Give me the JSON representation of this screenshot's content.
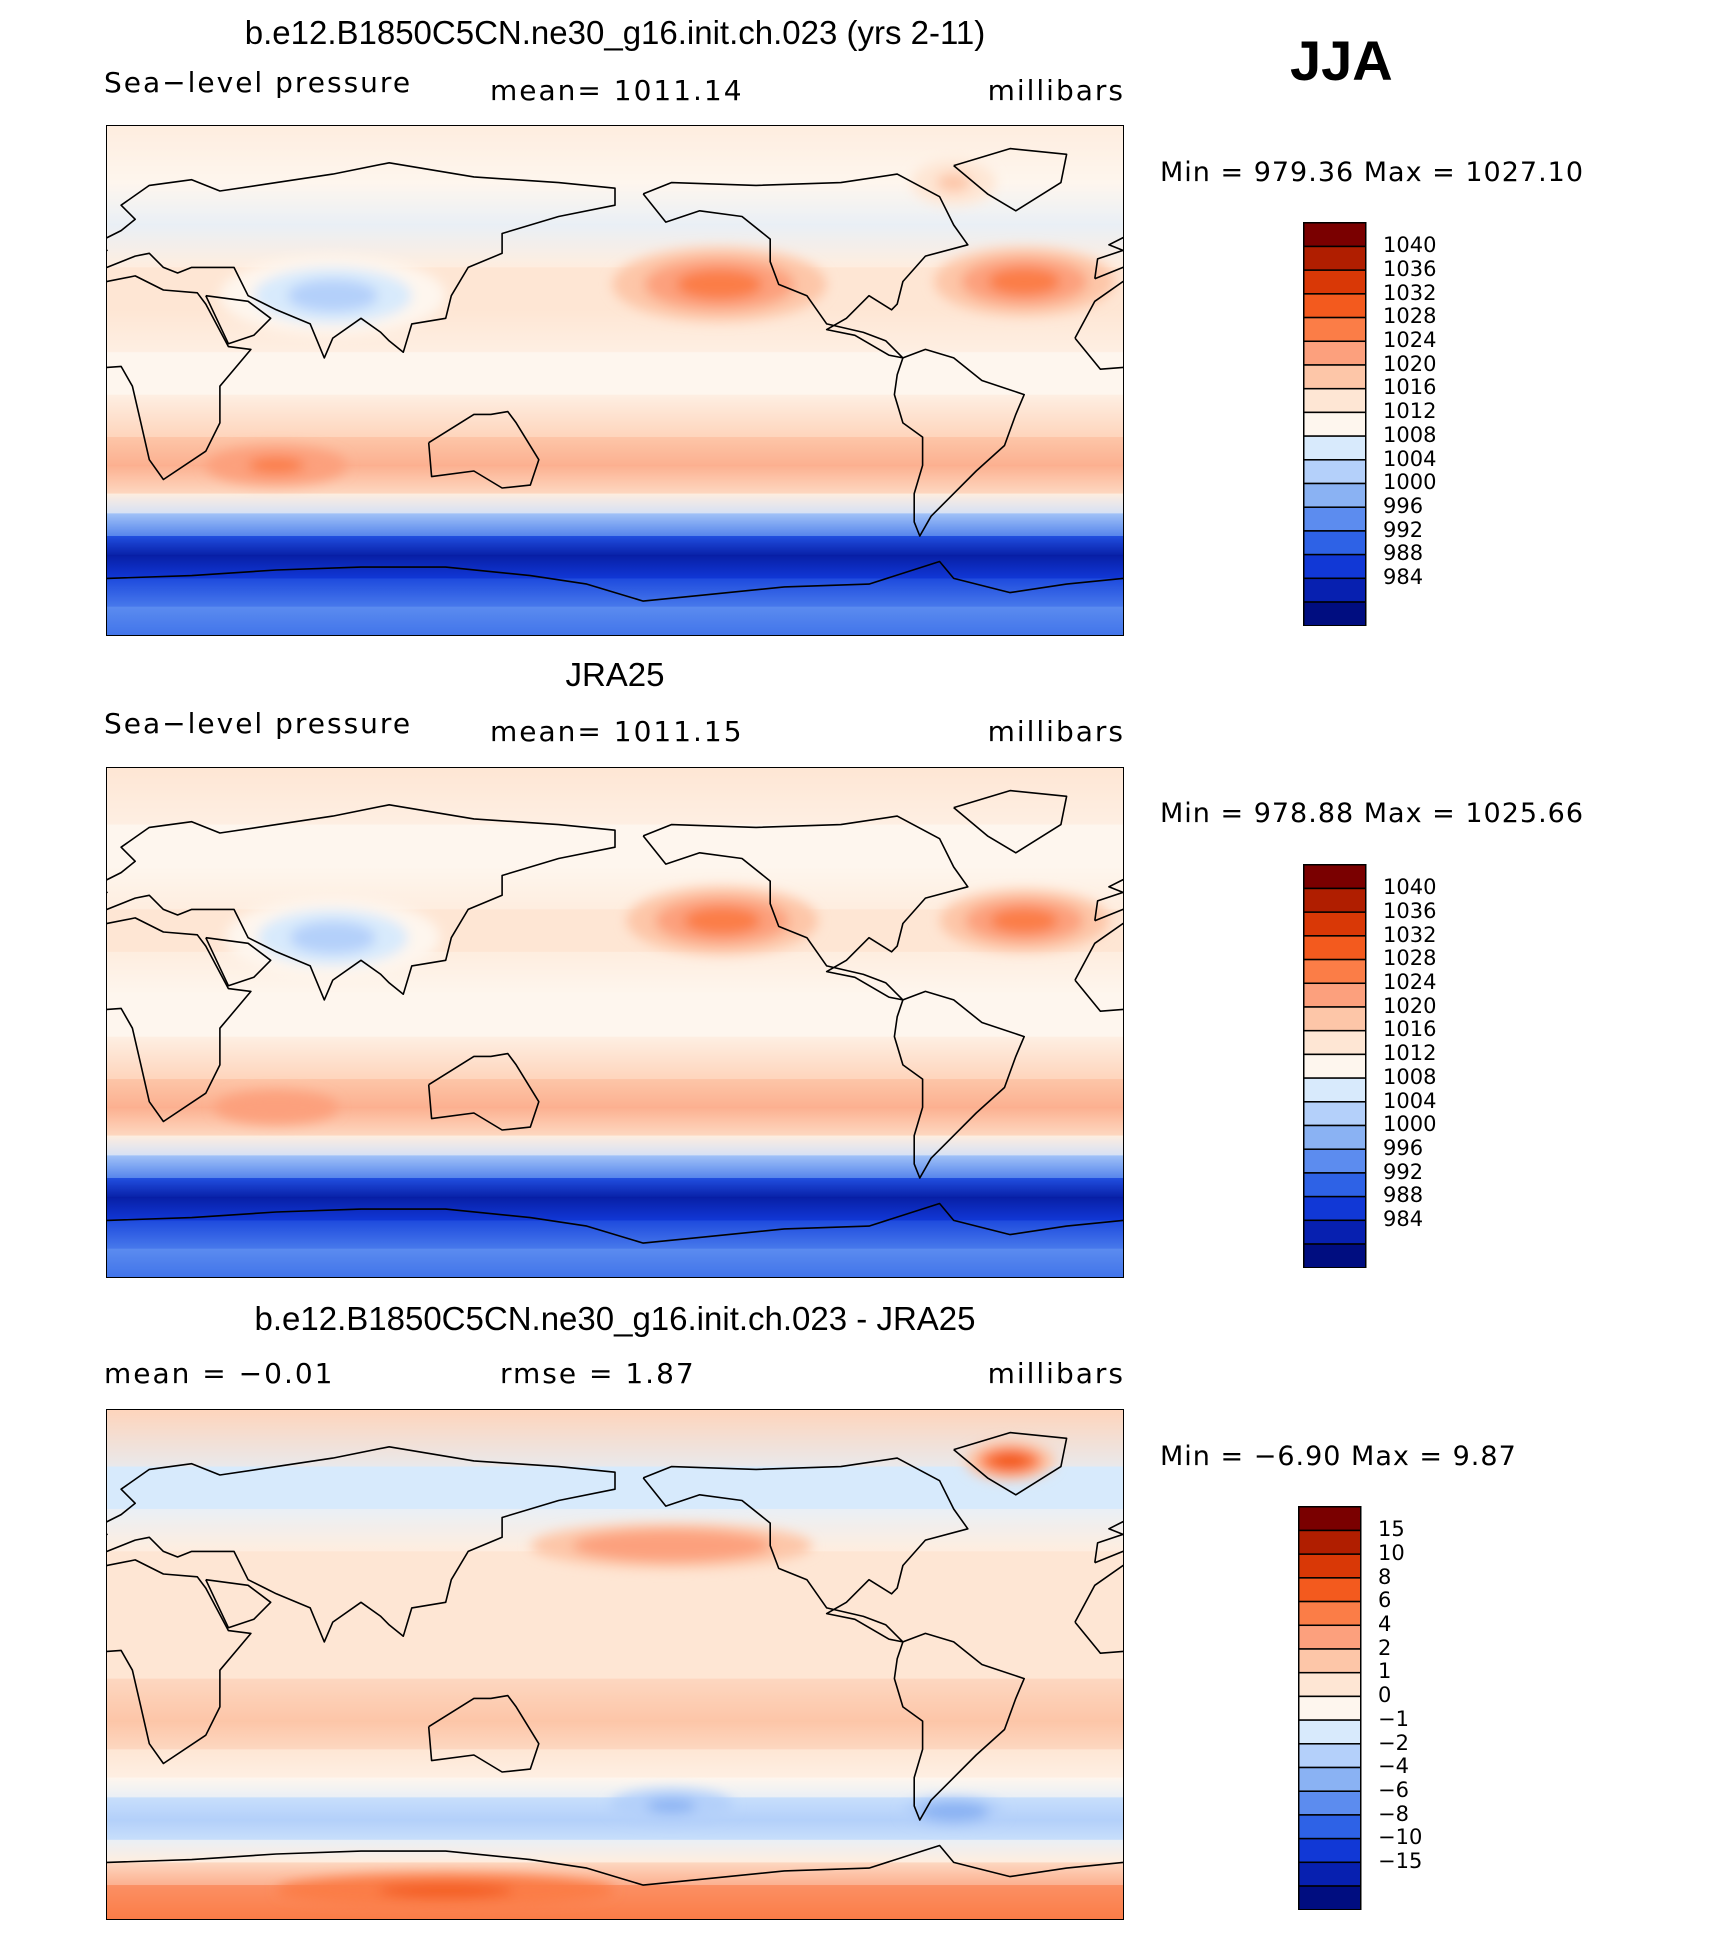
{
  "season": "JJA",
  "chart_data": [
    {
      "type": "heatmap",
      "title": "b.e12.B1850C5CN.ne30_g16.init.ch.023 (yrs 2-11)",
      "left_label": "Sea−level pressure",
      "center_label": "mean=  1011.14",
      "right_label": "millibars",
      "minmax_label": "Min  =  979.36  Max  =  1027.10",
      "variable": "Sea-level pressure",
      "units": "millibars",
      "mean": 1011.14,
      "min": 979.36,
      "max": 1027.1,
      "colorbar_levels": [
        "1040",
        "1036",
        "1032",
        "1028",
        "1024",
        "1020",
        "1016",
        "1012",
        "1008",
        "1004",
        "1000",
        "996",
        "992",
        "988",
        "984"
      ],
      "colorbar_colors": [
        "#7a0000",
        "#b01e00",
        "#d93806",
        "#f35a1e",
        "#fb7d47",
        "#fca07d",
        "#fdc6a8",
        "#fee6d4",
        "#fef6ee",
        "#d8eafc",
        "#b4d0fa",
        "#8ab2f3",
        "#5c8cef",
        "#2e62e6",
        "#1138d6",
        "#0720b0",
        "#000d80"
      ],
      "bands": [
        {
          "lat": 90,
          "v": 1012
        },
        {
          "lat": 70,
          "v": 1010
        },
        {
          "lat": 55,
          "v": 1006
        },
        {
          "lat": 40,
          "v": 1012
        },
        {
          "lat": 25,
          "v": 1014
        },
        {
          "lat": 10,
          "v": 1010
        },
        {
          "lat": -5,
          "v": 1011
        },
        {
          "lat": -20,
          "v": 1016
        },
        {
          "lat": -30,
          "v": 1020
        },
        {
          "lat": -40,
          "v": 1014
        },
        {
          "lat": -47,
          "v": 1002
        },
        {
          "lat": -55,
          "v": 990
        },
        {
          "lat": -62,
          "v": 982
        },
        {
          "lat": -70,
          "v": 986
        },
        {
          "lat": -80,
          "v": 994
        },
        {
          "lat": -90,
          "v": 990
        }
      ],
      "features": [
        {
          "lon": 217,
          "lat": 34,
          "rx": 38,
          "ry": 13,
          "v": 1026
        },
        {
          "lon": 325,
          "lat": 35,
          "rx": 32,
          "ry": 12,
          "v": 1027
        },
        {
          "lon": 80,
          "lat": 30,
          "rx": 40,
          "ry": 14,
          "v": 1000
        },
        {
          "lon": 60,
          "lat": -30,
          "rx": 25,
          "ry": 7,
          "v": 1024
        },
        {
          "lon": 300,
          "lat": 70,
          "rx": 15,
          "ry": 8,
          "v": 1016
        }
      ]
    },
    {
      "type": "heatmap",
      "title": "JRA25",
      "left_label": "Sea−level pressure",
      "center_label": "mean=  1011.15",
      "right_label": "millibars",
      "minmax_label": "Min  =  978.88  Max  =  1025.66",
      "variable": "Sea-level pressure",
      "units": "millibars",
      "mean": 1011.15,
      "min": 978.88,
      "max": 1025.66,
      "colorbar_levels": [
        "1040",
        "1036",
        "1032",
        "1028",
        "1024",
        "1020",
        "1016",
        "1012",
        "1008",
        "1004",
        "1000",
        "996",
        "992",
        "988",
        "984"
      ],
      "colorbar_colors": [
        "#7a0000",
        "#b01e00",
        "#d93806",
        "#f35a1e",
        "#fb7d47",
        "#fca07d",
        "#fdc6a8",
        "#fee6d4",
        "#fef6ee",
        "#d8eafc",
        "#b4d0fa",
        "#8ab2f3",
        "#5c8cef",
        "#2e62e6",
        "#1138d6",
        "#0720b0",
        "#000d80"
      ],
      "bands": [
        {
          "lat": 90,
          "v": 1013
        },
        {
          "lat": 70,
          "v": 1011
        },
        {
          "lat": 55,
          "v": 1008
        },
        {
          "lat": 40,
          "v": 1013
        },
        {
          "lat": 25,
          "v": 1013
        },
        {
          "lat": 10,
          "v": 1010
        },
        {
          "lat": -5,
          "v": 1011
        },
        {
          "lat": -20,
          "v": 1016
        },
        {
          "lat": -30,
          "v": 1021
        },
        {
          "lat": -40,
          "v": 1014
        },
        {
          "lat": -47,
          "v": 1003
        },
        {
          "lat": -55,
          "v": 991
        },
        {
          "lat": -62,
          "v": 983
        },
        {
          "lat": -70,
          "v": 987
        },
        {
          "lat": -80,
          "v": 995
        },
        {
          "lat": -90,
          "v": 991
        }
      ],
      "features": [
        {
          "lon": 218,
          "lat": 36,
          "rx": 34,
          "ry": 12,
          "v": 1025
        },
        {
          "lon": 325,
          "lat": 36,
          "rx": 30,
          "ry": 11,
          "v": 1025
        },
        {
          "lon": 80,
          "lat": 30,
          "rx": 38,
          "ry": 14,
          "v": 1003
        },
        {
          "lon": 60,
          "lat": -30,
          "rx": 22,
          "ry": 6,
          "v": 1023
        }
      ]
    },
    {
      "type": "heatmap",
      "title": "b.e12.B1850C5CN.ne30_g16.init.ch.023 - JRA25",
      "left_label": "mean  =    −0.01",
      "center_label": "rmse  =     1.87",
      "right_label": "millibars",
      "minmax_label": "Min  =    −6.90  Max  =     9.87",
      "variable": "Sea-level pressure difference",
      "units": "millibars",
      "mean": -0.01,
      "rmse": 1.87,
      "min": -6.9,
      "max": 9.87,
      "colorbar_levels": [
        "15",
        "10",
        "8",
        "6",
        "4",
        "2",
        "1",
        "0",
        "−1",
        "−2",
        "−4",
        "−6",
        "−8",
        "−10",
        "−15"
      ],
      "colorbar_colors": [
        "#7a0000",
        "#b01e00",
        "#d93806",
        "#f35a1e",
        "#fb7d47",
        "#fca07d",
        "#fdc6a8",
        "#fee6d4",
        "#fef6ee",
        "#d8eafc",
        "#b4d0fa",
        "#8ab2f3",
        "#5c8cef",
        "#2e62e6",
        "#1138d6",
        "#0720b0",
        "#000d80"
      ],
      "bands": [
        {
          "lat": 90,
          "v": 1.5
        },
        {
          "lat": 70,
          "v": -1.5
        },
        {
          "lat": 55,
          "v": -1.5
        },
        {
          "lat": 40,
          "v": 0.5
        },
        {
          "lat": 25,
          "v": 0.5
        },
        {
          "lat": 10,
          "v": 0.5
        },
        {
          "lat": -5,
          "v": 0.5
        },
        {
          "lat": -20,
          "v": 1.5
        },
        {
          "lat": -30,
          "v": 0.5
        },
        {
          "lat": -40,
          "v": -0.5
        },
        {
          "lat": -47,
          "v": -1.5
        },
        {
          "lat": -55,
          "v": -3
        },
        {
          "lat": -62,
          "v": -1.5
        },
        {
          "lat": -70,
          "v": 0.5
        },
        {
          "lat": -78,
          "v": 3
        },
        {
          "lat": -90,
          "v": 5
        }
      ],
      "features": [
        {
          "lon": 200,
          "lat": 42,
          "rx": 50,
          "ry": 8,
          "v": 3
        },
        {
          "lon": 320,
          "lat": 72,
          "rx": 16,
          "ry": 7,
          "v": 7
        },
        {
          "lon": 200,
          "lat": -50,
          "rx": 22,
          "ry": 6,
          "v": -5
        },
        {
          "lon": 300,
          "lat": -52,
          "rx": 18,
          "ry": 5,
          "v": -6
        },
        {
          "lon": 120,
          "lat": -80,
          "rx": 60,
          "ry": 6,
          "v": 7
        }
      ]
    }
  ]
}
